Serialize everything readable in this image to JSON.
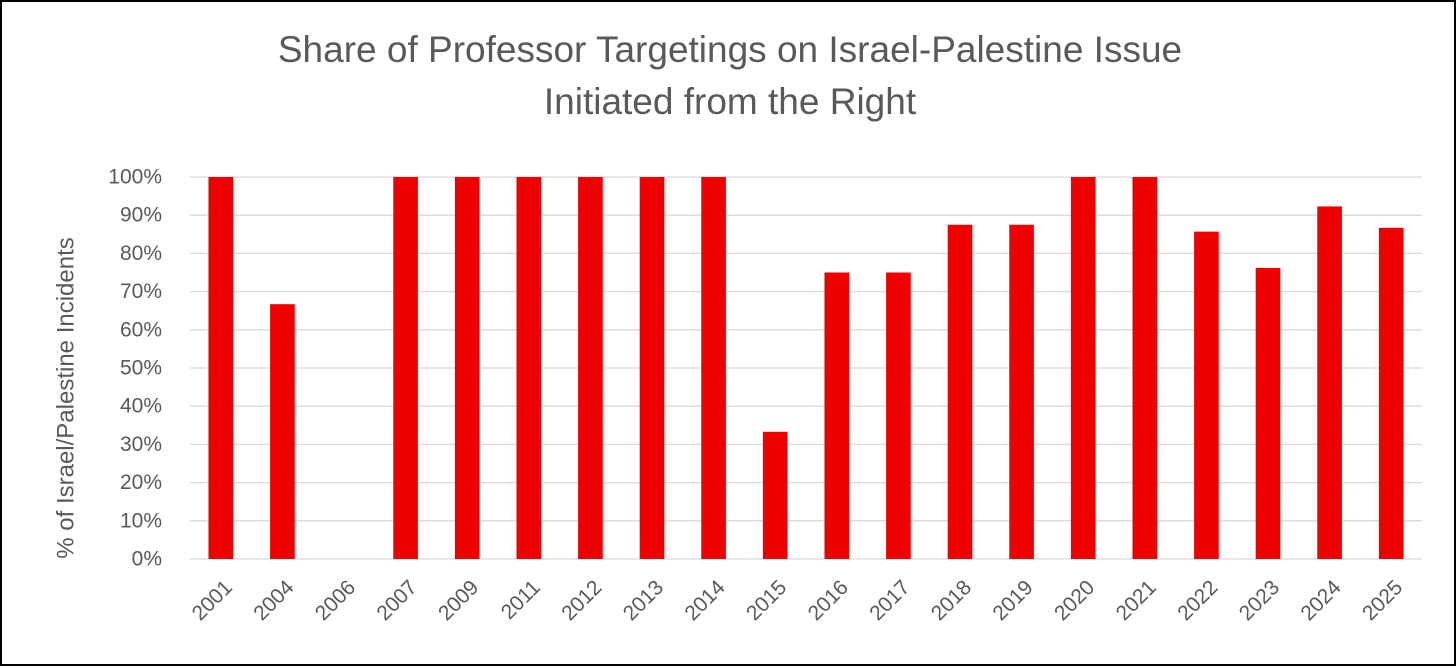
{
  "chart_data": {
    "type": "bar",
    "title": [
      "Share of Professor Targetings on Israel-Palestine Issue",
      "Initiated from the Right"
    ],
    "xlabel": "",
    "ylabel": "% of Israel/Palestine Incidents",
    "categories": [
      "2001",
      "2004",
      "2006",
      "2007",
      "2009",
      "2011",
      "2012",
      "2013",
      "2014",
      "2015",
      "2016",
      "2017",
      "2018",
      "2019",
      "2020",
      "2021",
      "2022",
      "2023",
      "2024",
      "2025"
    ],
    "values": [
      100,
      66.7,
      0,
      100,
      100,
      100,
      100,
      100,
      100,
      33.3,
      75,
      75,
      87.5,
      87.5,
      100,
      100,
      85.7,
      76.2,
      92.3,
      86.7
    ],
    "value_unit": "%",
    "ylim": [
      0,
      100
    ],
    "y_ticks": [
      "0%",
      "10%",
      "20%",
      "30%",
      "40%",
      "50%",
      "60%",
      "70%",
      "80%",
      "90%",
      "100%"
    ],
    "grid": true,
    "legend": "none",
    "bar_color": "#EE0000",
    "grid_color": "#D9D9D9",
    "text_color": "#595959"
  }
}
